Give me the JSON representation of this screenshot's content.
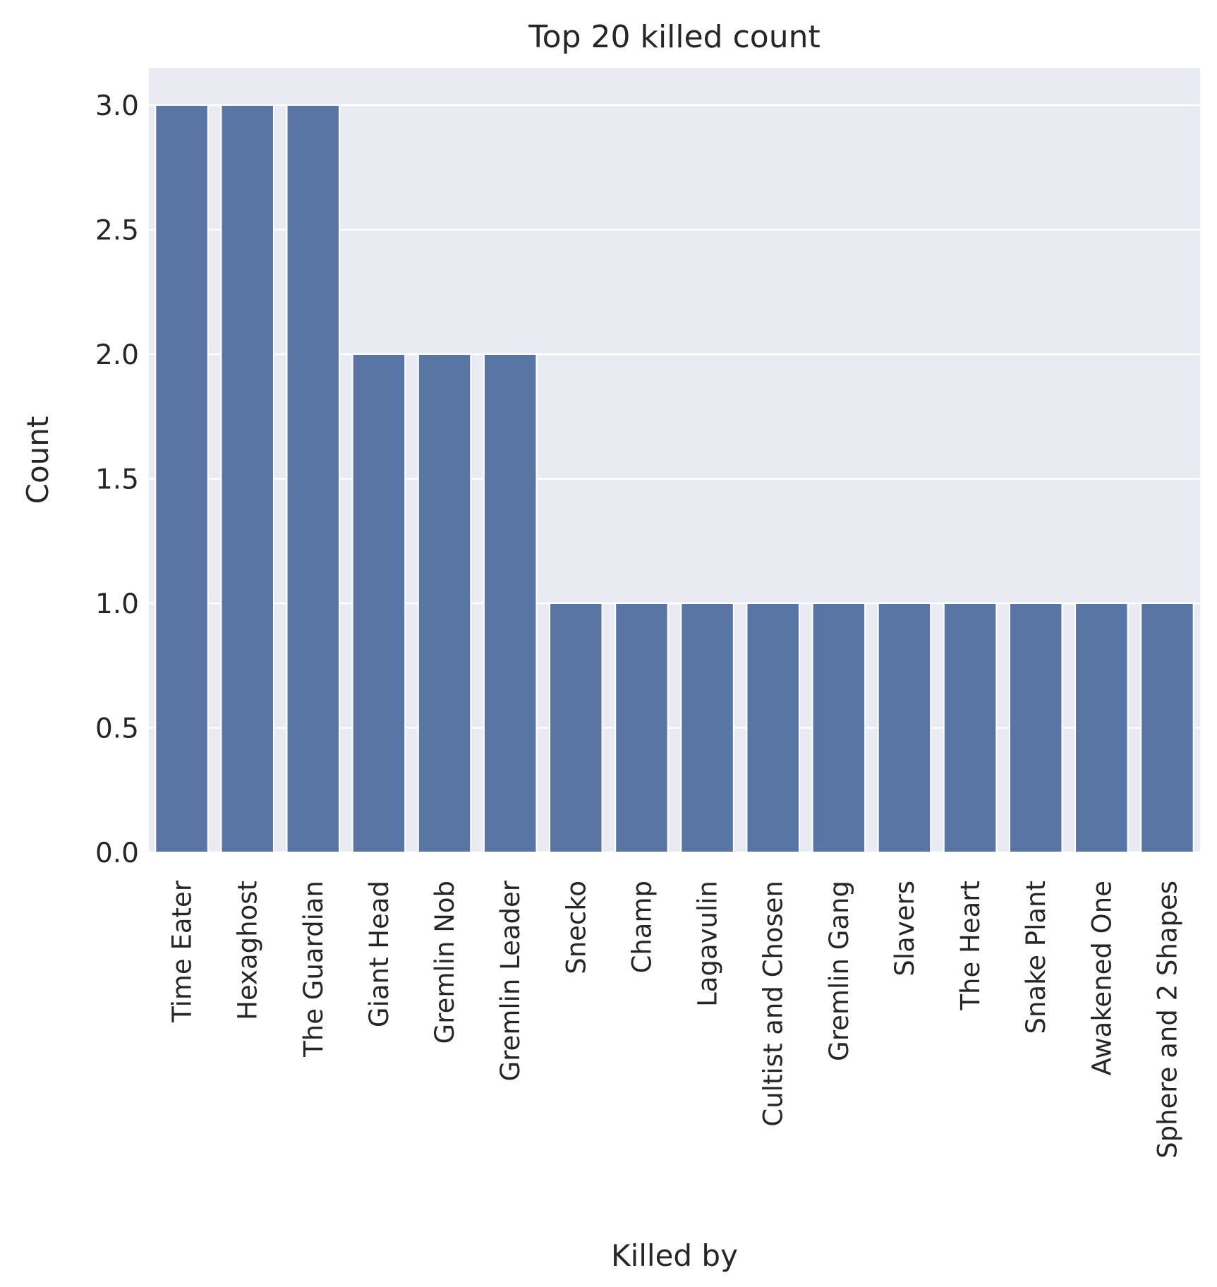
{
  "chart_data": {
    "type": "bar",
    "title": "Top 20 killed count",
    "xlabel": "Killed by",
    "ylabel": "Count",
    "categories": [
      "Time Eater",
      "Hexaghost",
      "The Guardian",
      "Giant Head",
      "Gremlin Nob",
      "Gremlin Leader",
      "Snecko",
      "Champ",
      "Lagavulin",
      "Cultist and Chosen",
      "Gremlin Gang",
      "Slavers",
      "The Heart",
      "Snake Plant",
      "Awakened One",
      "Sphere and 2 Shapes"
    ],
    "values": [
      3,
      3,
      3,
      2,
      2,
      2,
      1,
      1,
      1,
      1,
      1,
      1,
      1,
      1,
      1,
      1
    ],
    "ylim": [
      0,
      3.15
    ],
    "yticks": [
      "0.0",
      "0.5",
      "1.0",
      "1.5",
      "2.0",
      "2.5",
      "3.0"
    ],
    "grid": true,
    "legend": "none",
    "colors": {
      "bar": "#5975a4",
      "background": "#eaeaf2",
      "grid": "#ffffff"
    }
  }
}
